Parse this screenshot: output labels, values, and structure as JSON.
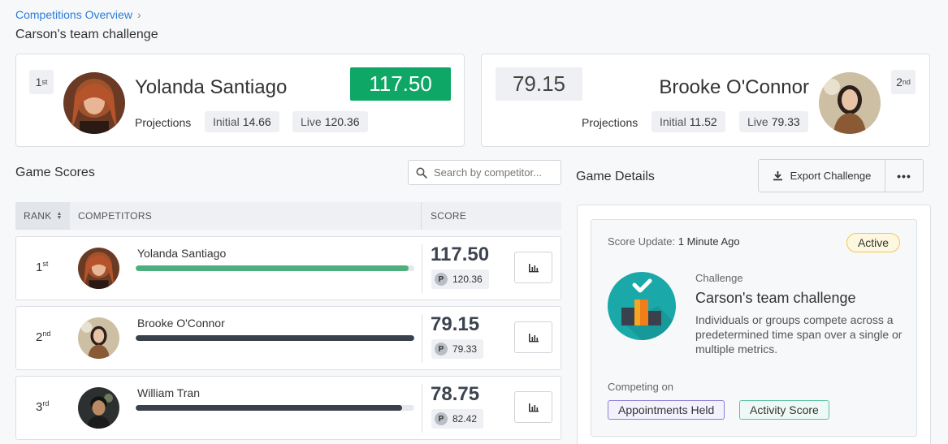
{
  "breadcrumb": {
    "label": "Competitions Overview",
    "chevron": "›"
  },
  "page_title": "Carson's team challenge",
  "leader": {
    "rank": "1",
    "rank_suffix": "st",
    "name": "Yolanda Santiago",
    "score": "117.50",
    "projections_label": "Projections",
    "initial_label": "Initial",
    "initial_value": "14.66",
    "live_label": "Live",
    "live_value": "120.36",
    "score_color": "#0fa765"
  },
  "runner_up": {
    "rank": "2",
    "rank_suffix": "nd",
    "name": "Brooke O'Connor",
    "score": "79.15",
    "projections_label": "Projections",
    "initial_label": "Initial",
    "initial_value": "11.52",
    "live_label": "Live",
    "live_value": "79.33"
  },
  "game_scores": {
    "title": "Game Scores",
    "search_placeholder": "Search by competitor...",
    "columns": {
      "rank": "RANK",
      "competitors": "COMPETITORS",
      "score": "SCORE"
    },
    "rows": [
      {
        "rank": "1",
        "suffix": "st",
        "name": "Yolanda Santiago",
        "score": "117.50",
        "projection": "120.36",
        "progress": 0.98,
        "bar_color": "#4caf7d"
      },
      {
        "rank": "2",
        "suffix": "nd",
        "name": "Brooke O'Connor",
        "score": "79.15",
        "projection": "79.33",
        "progress": 1.0,
        "bar_color": "#3a414d"
      },
      {
        "rank": "3",
        "suffix": "rd",
        "name": "William Tran",
        "score": "78.75",
        "projection": "82.42",
        "progress": 0.955,
        "bar_color": "#3a414d"
      }
    ],
    "projection_badge": "P"
  },
  "game_details": {
    "title": "Game Details",
    "export_label": "Export Challenge",
    "more_label": "•••",
    "update_label": "Score Update:",
    "update_value": "1 Minute Ago",
    "status": "Active",
    "challenge_label": "Challenge",
    "challenge_name": "Carson's team challenge",
    "challenge_desc": "Individuals or groups compete across a predetermined time span over a single or multiple metrics.",
    "competing_label": "Competing on",
    "metrics": [
      "Appointments Held",
      "Activity Score"
    ]
  }
}
